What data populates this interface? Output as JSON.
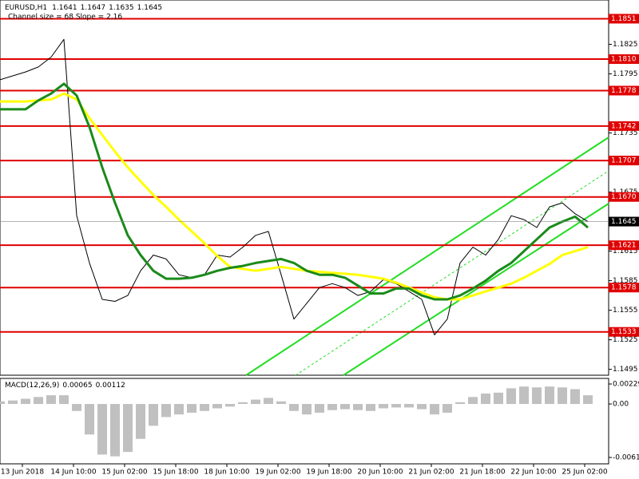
{
  "chart_data": [
    {
      "type": "line",
      "title": "EURUSD,H1",
      "header_values": [
        1.1641,
        1.1647,
        1.1635,
        1.1645
      ],
      "annotation": "Channel size = 68 Slope = 2.16",
      "x": [
        0,
        4,
        8,
        12,
        16,
        20,
        24,
        28,
        32,
        36,
        40,
        44,
        48,
        52,
        56,
        60,
        64,
        68,
        72,
        76,
        80,
        84,
        88,
        92,
        96,
        100,
        104,
        108,
        112,
        116,
        120,
        124,
        128,
        132,
        136,
        140,
        144,
        148,
        152,
        156,
        160,
        164,
        168,
        172,
        176,
        180,
        184
      ],
      "xlim": [
        0,
        190.5
      ],
      "xticks": [
        {
          "value": 7,
          "label": "13 Jun 2018"
        },
        {
          "value": 23,
          "label": "14 Jun 10:00"
        },
        {
          "value": 39,
          "label": "15 Jun 02:00"
        },
        {
          "value": 55,
          "label": "15 Jun 18:00"
        },
        {
          "value": 71,
          "label": "18 Jun 10:00"
        },
        {
          "value": 87,
          "label": "19 Jun 02:00"
        },
        {
          "value": 103,
          "label": "19 Jun 18:00"
        },
        {
          "value": 119,
          "label": "20 Jun 10:00"
        },
        {
          "value": 135,
          "label": "21 Jun 02:00"
        },
        {
          "value": 151,
          "label": "21 Jun 18:00"
        },
        {
          "value": 167,
          "label": "22 Jun 10:00"
        },
        {
          "value": 183,
          "label": "25 Jun 02:00"
        }
      ],
      "ylim": [
        1.1489,
        1.187
      ],
      "yticks": [
        1.1825,
        1.1795,
        1.1735,
        1.1675,
        1.1615,
        1.1585,
        1.1555,
        1.1525,
        1.1495
      ],
      "levels": [
        1.1851,
        {
          "value": 1.181,
          "label": "1.1810"
        },
        1.1778,
        1.1742,
        1.1707,
        {
          "value": 1.167,
          "label": "1.1670"
        },
        1.1621,
        1.1578,
        1.1533
      ],
      "level_color": "#e00000",
      "current_price": 1.1645,
      "series": [
        {
          "color": "#000000",
          "values": [
            1.1789,
            1.1793,
            1.1797,
            1.1802,
            1.1812,
            1.183,
            1.1651,
            1.1603,
            1.1566,
            1.1564,
            1.157,
            1.1595,
            1.1611,
            1.1607,
            1.1591,
            1.1588,
            1.1591,
            1.1611,
            1.1609,
            1.1619,
            1.1631,
            1.1635,
            1.1591,
            1.1546,
            1.1562,
            1.1578,
            1.1582,
            1.1578,
            1.157,
            1.1574,
            1.1586,
            1.1582,
            1.1574,
            1.1566,
            1.153,
            1.1546,
            1.1603,
            1.1619,
            1.1611,
            1.1627,
            1.1651,
            1.1647,
            1.1639,
            1.166,
            1.1664,
            1.1653,
            1.1645
          ]
        },
        {
          "color": "#ffff00",
          "values": [
            1.1767,
            1.1767,
            1.1767,
            1.1768,
            1.1769,
            1.1775,
            1.1769,
            1.175,
            1.1733,
            1.1716,
            1.17,
            1.1686,
            1.1672,
            1.166,
            1.1647,
            1.1635,
            1.1623,
            1.161,
            1.1599,
            1.1597,
            1.1595,
            1.1597,
            1.1599,
            1.1597,
            1.1595,
            1.1594,
            1.1593,
            1.1592,
            1.1591,
            1.1589,
            1.1587,
            1.1583,
            1.1578,
            1.1573,
            1.1568,
            1.1566,
            1.1566,
            1.157,
            1.1574,
            1.1578,
            1.1582,
            1.1588,
            1.1595,
            1.1602,
            1.1611,
            1.1615,
            1.1619
          ]
        },
        {
          "color": "#1a8a1a",
          "values": [
            1.1759,
            1.1759,
            1.1759,
            1.1768,
            1.1775,
            1.1785,
            1.1773,
            1.1741,
            1.17,
            1.1664,
            1.1631,
            1.1611,
            1.1595,
            1.1587,
            1.1587,
            1.1588,
            1.1591,
            1.1595,
            1.1598,
            1.16,
            1.1603,
            1.1605,
            1.1607,
            1.1603,
            1.1595,
            1.1591,
            1.1591,
            1.1588,
            1.158,
            1.1572,
            1.1572,
            1.1577,
            1.1577,
            1.157,
            1.1566,
            1.1566,
            1.157,
            1.1577,
            1.1585,
            1.1595,
            1.1603,
            1.1615,
            1.1627,
            1.1639,
            1.1645,
            1.165,
            1.1639
          ]
        }
      ]
    },
    {
      "type": "bar",
      "title": "MACD(12,26,9)",
      "header_values": [
        0.00065,
        0.00112
      ],
      "x": [
        0,
        4,
        8,
        12,
        16,
        20,
        24,
        28,
        32,
        36,
        40,
        44,
        48,
        52,
        56,
        60,
        64,
        68,
        72,
        76,
        80,
        84,
        88,
        92,
        96,
        100,
        104,
        108,
        112,
        116,
        120,
        124,
        128,
        132,
        136,
        140,
        144,
        148,
        152,
        156,
        160,
        164,
        168,
        172,
        176,
        180,
        184
      ],
      "xlim": [
        0,
        190.5
      ],
      "values": [
        0.0003,
        0.0004,
        0.0006,
        0.0008,
        0.001,
        0.001,
        -0.0008,
        -0.0035,
        -0.0058,
        -0.006,
        -0.0055,
        -0.004,
        -0.0025,
        -0.0015,
        -0.0012,
        -0.001,
        -0.0008,
        -0.0005,
        -0.0003,
        0.0002,
        0.0005,
        0.0007,
        0.0003,
        -0.0008,
        -0.0012,
        -0.001,
        -0.0007,
        -0.0006,
        -0.0007,
        -0.0008,
        -0.0005,
        -0.0004,
        -0.0004,
        -0.0006,
        -0.0012,
        -0.001,
        0.0002,
        0.0008,
        0.0012,
        0.0013,
        0.0018,
        0.002,
        0.0019,
        0.002,
        0.0019,
        0.0017,
        0.001
      ],
      "color": "#c0c0c0",
      "ylim": [
        -0.00613,
        0.00229
      ],
      "yticks": [
        0.00229,
        {
          "value": 0,
          "label": "0.00"
        },
        -0.00613
      ]
    }
  ]
}
